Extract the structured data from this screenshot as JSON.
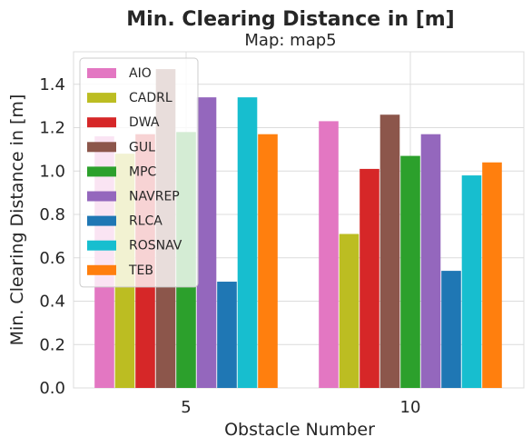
{
  "chart_data": {
    "type": "bar",
    "title": "Min. Clearing Distance in [m]",
    "subtitle": "Map: map5",
    "xlabel": "Obstacle Number",
    "ylabel": "Min. Clearing Distance in [m]",
    "categories": [
      "5",
      "10"
    ],
    "ylim": [
      0,
      1.55
    ],
    "yticks": [
      "0.0",
      "0.2",
      "0.4",
      "0.6",
      "0.8",
      "1.0",
      "1.2",
      "1.4"
    ],
    "grid": true,
    "legend_position": "top-left",
    "series": [
      {
        "name": "AIO",
        "color": "#e377c2",
        "values": [
          1.16,
          1.23
        ]
      },
      {
        "name": "CADRL",
        "color": "#bcbd22",
        "values": [
          1.08,
          0.71
        ]
      },
      {
        "name": "DWA",
        "color": "#d62728",
        "values": [
          1.17,
          1.01
        ]
      },
      {
        "name": "GUL",
        "color": "#8c564b",
        "values": [
          1.47,
          1.26
        ]
      },
      {
        "name": "MPC",
        "color": "#2ca02c",
        "values": [
          1.18,
          1.07
        ]
      },
      {
        "name": "NAVREP",
        "color": "#9467bd",
        "values": [
          1.34,
          1.17
        ]
      },
      {
        "name": "RLCA",
        "color": "#1f77b4",
        "values": [
          0.49,
          0.54
        ]
      },
      {
        "name": "ROSNAV",
        "color": "#17becf",
        "values": [
          1.34,
          0.98
        ]
      },
      {
        "name": "TEB",
        "color": "#ff7f0e",
        "values": [
          1.17,
          1.04
        ]
      }
    ]
  }
}
